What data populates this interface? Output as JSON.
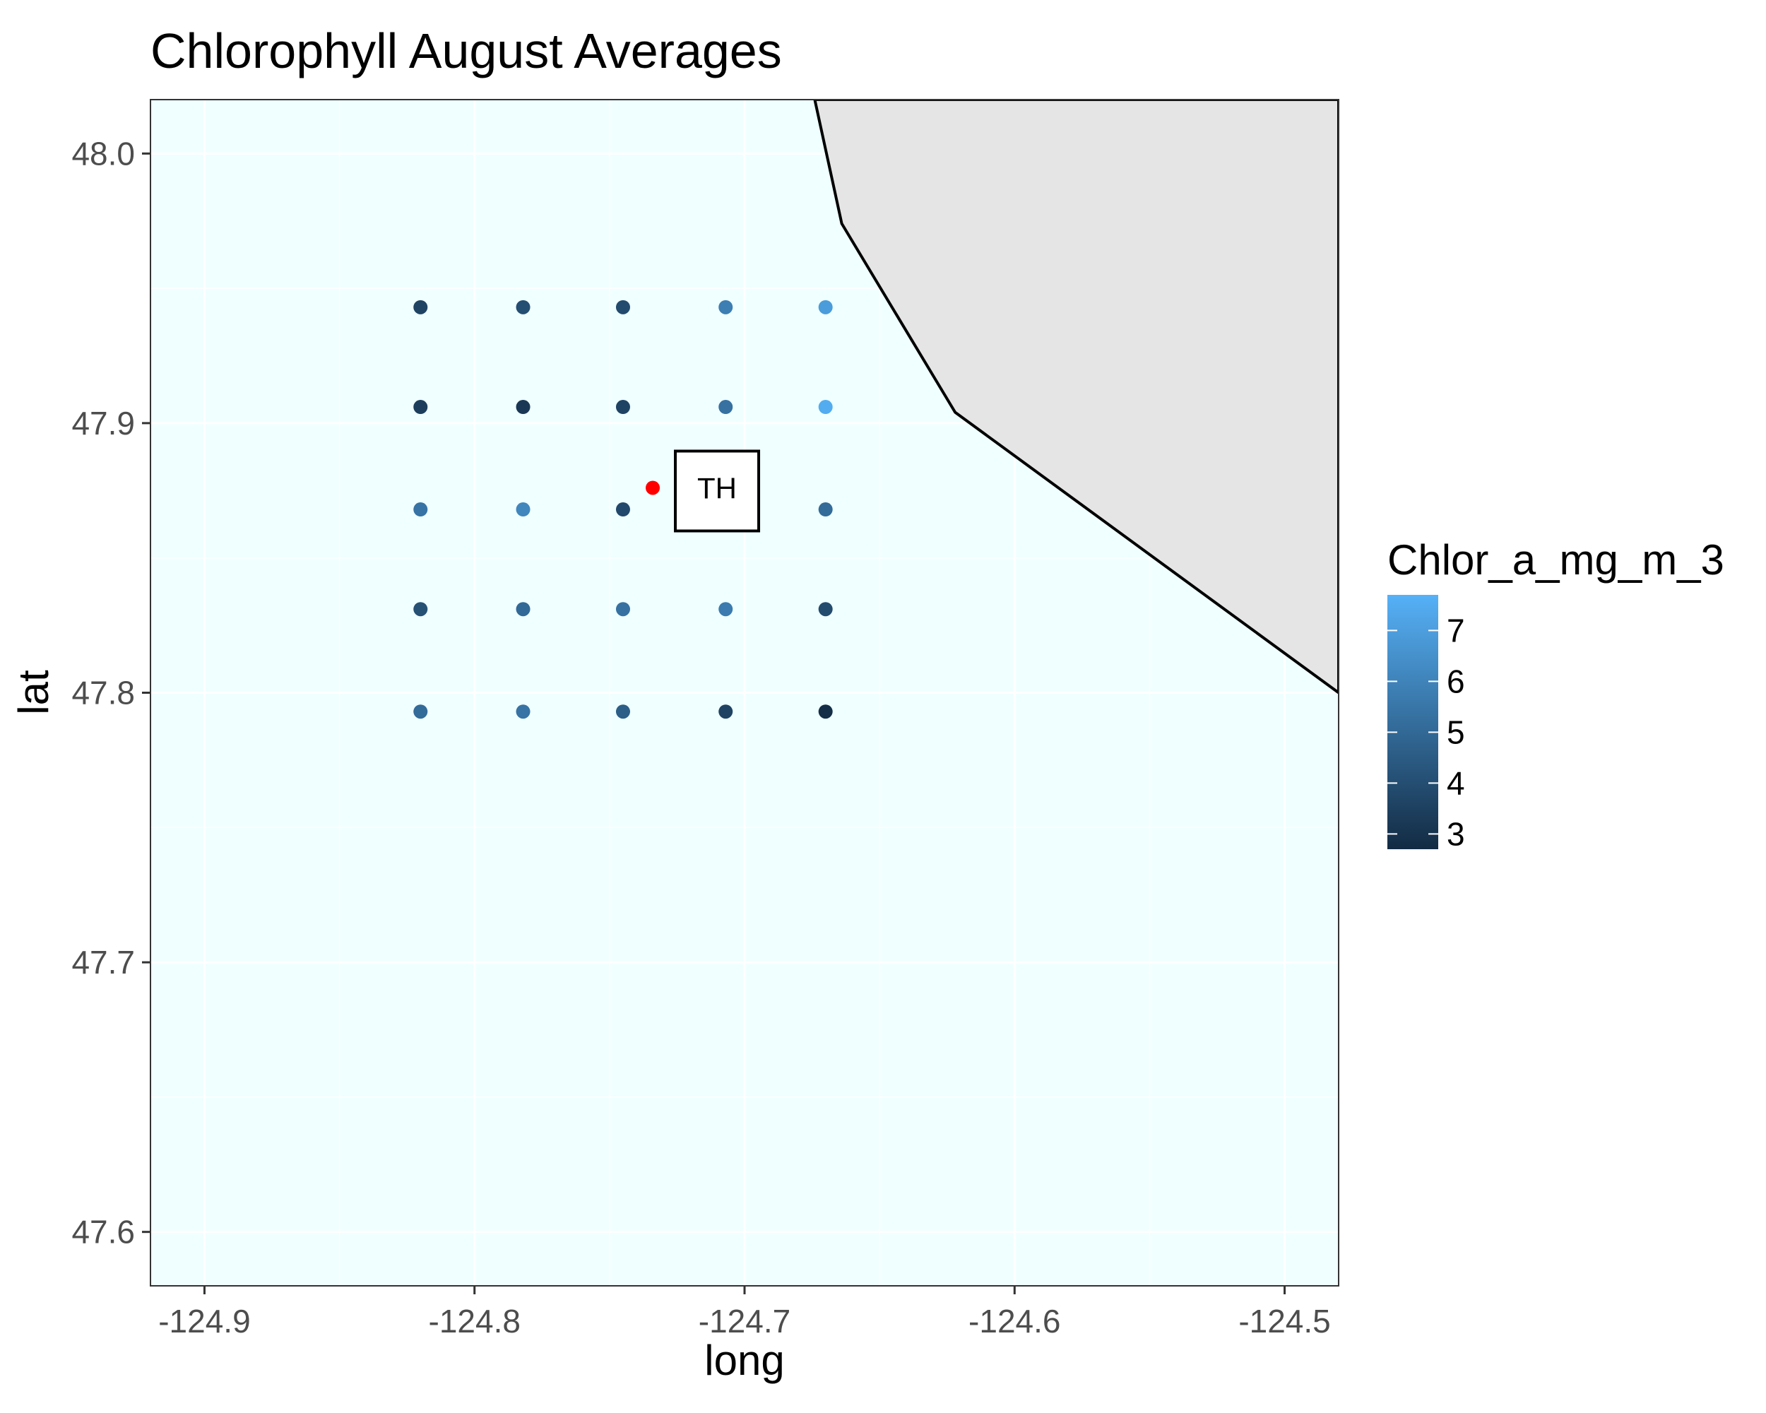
{
  "chart_data": {
    "type": "scatter",
    "title": "Chlorophyll August Averages",
    "xlabel": "long",
    "ylabel": "lat",
    "xlim": [
      -124.92,
      -124.48
    ],
    "ylim": [
      47.58,
      48.02
    ],
    "x_ticks": [
      -124.9,
      -124.8,
      -124.7,
      -124.6,
      -124.5
    ],
    "y_ticks": [
      47.6,
      47.7,
      47.8,
      47.9,
      48.0
    ],
    "x_tick_labels": [
      "-124.9",
      "-124.8",
      "-124.7",
      "-124.6",
      "-124.5"
    ],
    "y_tick_labels": [
      "47.6",
      "47.7",
      "47.8",
      "47.9",
      "48.0"
    ],
    "grid": true,
    "legend_position": "right",
    "colors": {
      "water": "#f0ffff",
      "land": "#e5e5e5",
      "site_marker": "#ff0000",
      "scale_low": "#132b43",
      "scale_high": "#56b1f7"
    },
    "coastline": [
      {
        "long": -124.674,
        "lat": 48.02
      },
      {
        "long": -124.664,
        "lat": 47.974
      },
      {
        "long": -124.622,
        "lat": 47.904
      },
      {
        "long": -124.48,
        "lat": 47.8
      }
    ],
    "color_scale": {
      "title": "Chlor_a_mg_m_3",
      "min": 2.7,
      "max": 7.7,
      "ticks": [
        3,
        4,
        5,
        6,
        7
      ],
      "tick_labels": [
        "3",
        "4",
        "5",
        "6",
        "7"
      ]
    },
    "points": [
      {
        "long": -124.82,
        "lat": 47.943,
        "chlor": 3.6
      },
      {
        "long": -124.782,
        "lat": 47.943,
        "chlor": 4.0
      },
      {
        "long": -124.745,
        "lat": 47.943,
        "chlor": 3.9
      },
      {
        "long": -124.707,
        "lat": 47.943,
        "chlor": 5.8
      },
      {
        "long": -124.67,
        "lat": 47.943,
        "chlor": 6.9
      },
      {
        "long": -124.82,
        "lat": 47.906,
        "chlor": 3.4
      },
      {
        "long": -124.782,
        "lat": 47.906,
        "chlor": 3.2
      },
      {
        "long": -124.745,
        "lat": 47.906,
        "chlor": 3.6
      },
      {
        "long": -124.707,
        "lat": 47.906,
        "chlor": 5.3
      },
      {
        "long": -124.67,
        "lat": 47.906,
        "chlor": 7.5
      },
      {
        "long": -124.82,
        "lat": 47.868,
        "chlor": 5.4
      },
      {
        "long": -124.782,
        "lat": 47.868,
        "chlor": 6.1
      },
      {
        "long": -124.745,
        "lat": 47.868,
        "chlor": 3.8
      },
      {
        "long": -124.67,
        "lat": 47.868,
        "chlor": 5.1
      },
      {
        "long": -124.82,
        "lat": 47.831,
        "chlor": 4.1
      },
      {
        "long": -124.782,
        "lat": 47.831,
        "chlor": 5.0
      },
      {
        "long": -124.745,
        "lat": 47.831,
        "chlor": 5.3
      },
      {
        "long": -124.707,
        "lat": 47.831,
        "chlor": 5.7
      },
      {
        "long": -124.67,
        "lat": 47.831,
        "chlor": 3.9
      },
      {
        "long": -124.82,
        "lat": 47.793,
        "chlor": 5.1
      },
      {
        "long": -124.782,
        "lat": 47.793,
        "chlor": 5.4
      },
      {
        "long": -124.745,
        "lat": 47.793,
        "chlor": 4.6
      },
      {
        "long": -124.707,
        "lat": 47.793,
        "chlor": 3.6
      },
      {
        "long": -124.67,
        "lat": 47.793,
        "chlor": 2.8
      }
    ],
    "site": {
      "label": "TH",
      "long": -124.734,
      "lat": 47.876
    }
  }
}
